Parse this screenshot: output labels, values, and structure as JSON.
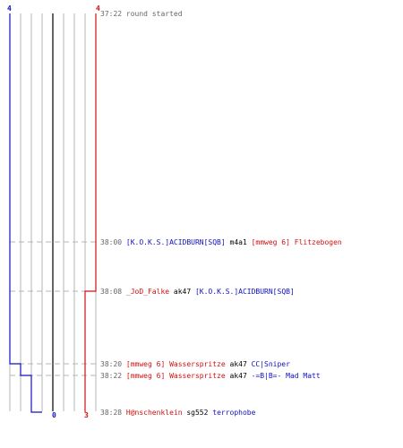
{
  "colors": {
    "team_a": "#1010c0",
    "team_b": "#d01010",
    "neutral": "#000000",
    "grid": "#b4b4b4",
    "center": "#666666",
    "timestamp": "#666666",
    "dash": "#b4b4b4"
  },
  "chart_data": {
    "type": "line",
    "x_scale_ticks": [
      "4",
      "0",
      "3",
      "4"
    ],
    "series": [
      {
        "team": "a",
        "values": [
          4,
          4,
          4,
          3,
          2,
          1,
          0
        ]
      },
      {
        "team": "b",
        "values": [
          4,
          4,
          3,
          3,
          3,
          3,
          3
        ]
      }
    ],
    "events": [
      {
        "time": "37:22",
        "parts": [
          {
            "text": "round started",
            "color": "timestamp"
          }
        ]
      },
      {
        "time": "38:00",
        "parts": [
          {
            "text": "[K.O.K.S.]ACIDBURN[SQB]",
            "color": "team_a"
          },
          {
            "text": " m4a1 ",
            "color": "neutral"
          },
          {
            "text": "[mmweg 6] Flitzebogen",
            "color": "team_b"
          }
        ]
      },
      {
        "time": "38:08",
        "parts": [
          {
            "text": "_JoD_Falke",
            "color": "team_b"
          },
          {
            "text": " ak47 ",
            "color": "neutral"
          },
          {
            "text": "[K.O.K.S.]ACIDBURN[SQB]",
            "color": "team_a"
          }
        ]
      },
      {
        "time": "38:20",
        "parts": [
          {
            "text": "[mmweg 6] Wasserspritze",
            "color": "team_b"
          },
          {
            "text": " ak47 ",
            "color": "neutral"
          },
          {
            "text": "CC|Sniper",
            "color": "team_a"
          }
        ]
      },
      {
        "time": "38:22",
        "parts": [
          {
            "text": "[mmweg 6] Wasserspritze",
            "color": "team_b"
          },
          {
            "text": " ak47 ",
            "color": "neutral"
          },
          {
            "text": "-=B|B=- Mad Matt",
            "color": "team_a"
          }
        ]
      },
      {
        "time": "38:28",
        "parts": [
          {
            "text": "H@nschenklein",
            "color": "team_b"
          },
          {
            "text": " sg552 ",
            "color": "neutral"
          },
          {
            "text": "terrophobe",
            "color": "team_a"
          }
        ]
      }
    ]
  }
}
